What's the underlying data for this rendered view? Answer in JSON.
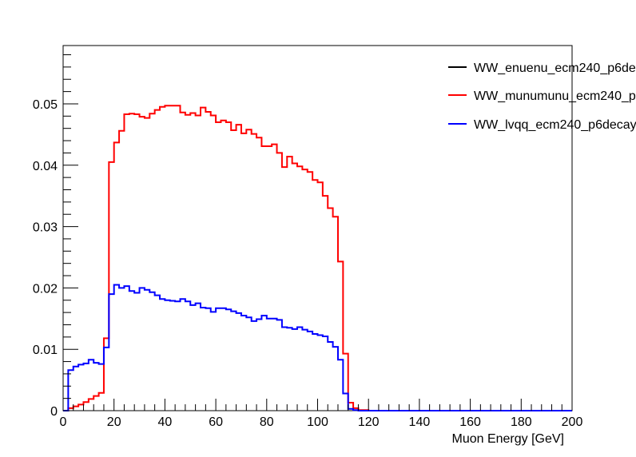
{
  "chart_data": {
    "type": "line",
    "style": "step-histogram",
    "title": "",
    "xlabel": "Muon Energy [GeV]",
    "ylabel": "",
    "xlim": [
      0,
      200
    ],
    "ylim": [
      0,
      0.0595
    ],
    "grid": false,
    "legend_position": "top-right",
    "x_ticks": [
      "0",
      "20",
      "40",
      "60",
      "80",
      "100",
      "120",
      "140",
      "160",
      "180",
      "200"
    ],
    "y_ticks": [
      "0",
      "0.01",
      "0.02",
      "0.03",
      "0.04",
      "0.05"
    ],
    "bin_width": 2,
    "bin_edges_start": 0,
    "series": [
      {
        "name": "WW_enuenu_ecm240_p6de",
        "color": "#000000",
        "values": [
          0
        ]
      },
      {
        "name": "WW_munumunu_ecm240_p",
        "color": "#ff0000",
        "values": [
          0,
          0.0004,
          0.0007,
          0.001,
          0.0014,
          0.0019,
          0.0024,
          0.0029,
          0.0118,
          0.0405,
          0.0437,
          0.0456,
          0.0483,
          0.0484,
          0.0483,
          0.0479,
          0.0477,
          0.0484,
          0.049,
          0.0495,
          0.0497,
          0.0497,
          0.0497,
          0.0486,
          0.0482,
          0.0485,
          0.0481,
          0.0494,
          0.0487,
          0.0481,
          0.047,
          0.0473,
          0.047,
          0.0457,
          0.0466,
          0.0452,
          0.0458,
          0.0451,
          0.0445,
          0.0431,
          0.0431,
          0.0434,
          0.042,
          0.0397,
          0.0414,
          0.0403,
          0.0398,
          0.0393,
          0.0389,
          0.0376,
          0.0372,
          0.035,
          0.033,
          0.0316,
          0.0243,
          0.0093,
          0.0013,
          0.0004,
          0.0001,
          0.0001,
          0,
          0,
          0,
          0,
          0,
          0,
          0,
          0,
          0,
          0,
          0,
          0,
          0,
          0,
          0,
          0,
          0,
          0,
          0,
          0,
          0,
          0,
          0,
          0,
          0,
          0,
          0,
          0,
          0,
          0,
          0,
          0,
          0,
          0,
          0,
          0,
          0,
          0,
          0,
          0
        ]
      },
      {
        "name": "WW_lvqq_ecm240_p6decay",
        "color": "#0000ff",
        "values": [
          0,
          0.0066,
          0.0072,
          0.0075,
          0.0077,
          0.0083,
          0.0078,
          0.0076,
          0.0103,
          0.019,
          0.0205,
          0.02,
          0.0203,
          0.0195,
          0.0192,
          0.02,
          0.0197,
          0.0193,
          0.0188,
          0.0182,
          0.018,
          0.0179,
          0.0178,
          0.0182,
          0.0178,
          0.0172,
          0.0175,
          0.0168,
          0.0167,
          0.0161,
          0.0167,
          0.0167,
          0.0165,
          0.0162,
          0.0159,
          0.0155,
          0.0152,
          0.0146,
          0.0149,
          0.0155,
          0.015,
          0.015,
          0.0148,
          0.0136,
          0.0135,
          0.0133,
          0.0136,
          0.0132,
          0.0129,
          0.0125,
          0.0123,
          0.0121,
          0.0112,
          0.0104,
          0.0083,
          0.0028,
          0.0003,
          0.0001,
          0,
          0,
          0,
          0,
          0,
          0,
          0,
          0,
          0,
          0,
          0,
          0,
          0,
          0,
          0,
          0,
          0,
          0,
          0,
          0,
          0,
          0,
          0,
          0,
          0,
          0,
          0,
          0,
          0,
          0,
          0,
          0,
          0,
          0,
          0,
          0,
          0,
          0,
          0,
          0,
          0,
          0
        ]
      }
    ]
  }
}
